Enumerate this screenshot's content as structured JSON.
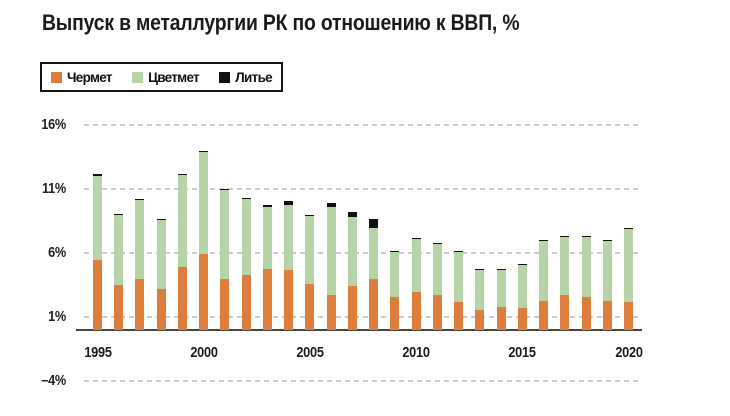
{
  "title": "Выпуск в металлургии РК по отношению к ВВП, %",
  "legend": {
    "items": [
      {
        "label": "Чермет",
        "color": "#dd7e3d"
      },
      {
        "label": "Цветмет",
        "color": "#b7d4a6"
      },
      {
        "label": "Литье",
        "color": "#111111"
      }
    ]
  },
  "colors": {
    "chermet": "#dd7e3d",
    "tsvetmet": "#b7d4a6",
    "litye": "#111111",
    "gridline": "#cbcbcb",
    "axis": "#474747",
    "text": "#1a1a1a"
  },
  "chart_data": {
    "type": "bar",
    "stacked": true,
    "title": "Выпуск в металлургии РК по отношению к ВВП, %",
    "categories": [
      1995,
      1996,
      1997,
      1998,
      1999,
      2000,
      2001,
      2002,
      2003,
      2004,
      2005,
      2006,
      2007,
      2008,
      2009,
      2010,
      2011,
      2012,
      2013,
      2014,
      2015,
      2016,
      2017,
      2018,
      2019,
      2020
    ],
    "series": [
      {
        "name": "Чермет",
        "color": "#dd7e3d",
        "values": [
          5.5,
          3.5,
          4.0,
          3.2,
          4.9,
          5.9,
          4.0,
          4.3,
          4.8,
          4.7,
          3.6,
          2.7,
          3.4,
          4.0,
          2.6,
          3.0,
          2.7,
          2.2,
          1.6,
          1.8,
          1.7,
          2.3,
          2.7,
          2.6,
          2.3,
          2.2
        ]
      },
      {
        "name": "Цветмет",
        "color": "#b7d4a6",
        "values": [
          6.5,
          5.5,
          6.2,
          5.4,
          7.2,
          8.0,
          6.9,
          5.9,
          4.8,
          5.1,
          5.3,
          6.9,
          5.4,
          4.0,
          3.5,
          4.1,
          4.0,
          3.9,
          3.1,
          2.9,
          3.4,
          4.7,
          4.6,
          4.7,
          4.7,
          5.7
        ]
      },
      {
        "name": "Литье",
        "color": "#111111",
        "values": [
          0.2,
          0.05,
          0.05,
          0.05,
          0.1,
          0.1,
          0.1,
          0.1,
          0.2,
          0.3,
          0.1,
          0.3,
          0.4,
          0.7,
          0.05,
          0.05,
          0.1,
          0.1,
          0.05,
          0.05,
          0.05,
          0.05,
          0.05,
          0.05,
          0.05,
          0.05
        ]
      }
    ],
    "ylim": [
      -4,
      16
    ],
    "y_ticks": [
      {
        "label": "16%",
        "value": 16
      },
      {
        "label": "11%",
        "value": 11
      },
      {
        "label": "6%",
        "value": 6
      },
      {
        "label": "1%",
        "value": 1
      },
      {
        "label": "–4%",
        "value": -4
      }
    ],
    "x_tick_labels": [
      "1995",
      "2000",
      "2005",
      "2010",
      "2015",
      "2020"
    ],
    "x_tick_years": [
      1995,
      2000,
      2005,
      2010,
      2015,
      2020
    ],
    "grid": "horizontal dashed",
    "legend_position": "top-left",
    "xlabel": "",
    "ylabel": ""
  }
}
